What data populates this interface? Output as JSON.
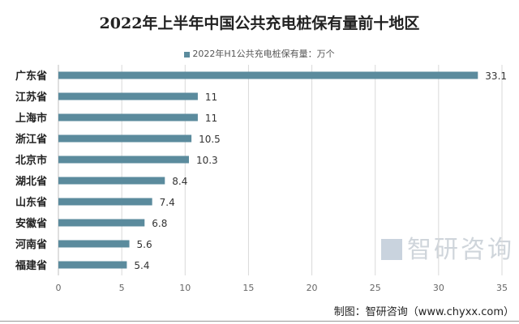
{
  "chart_data": {
    "type": "bar",
    "orientation": "horizontal",
    "title": "2022年上半年中国公共充电桩保有量前十地区",
    "categories": [
      "广东省",
      "江苏省",
      "上海市",
      "浙江省",
      "北京市",
      "湖北省",
      "山东省",
      "安徽省",
      "河南省",
      "福建省"
    ],
    "series": [
      {
        "name": "2022年H1公共充电桩保有量：万个",
        "values": [
          33.1,
          11,
          11,
          10.5,
          10.3,
          8.4,
          7.4,
          6.8,
          5.6,
          5.4
        ]
      }
    ],
    "data_labels": [
      "33.1",
      "11",
      "11",
      "10.5",
      "10.3",
      "8.4",
      "7.4",
      "6.8",
      "5.6",
      "5.4"
    ],
    "xlim": [
      0,
      35
    ],
    "xticks": [
      "0",
      "5",
      "10",
      "15",
      "20",
      "25",
      "30",
      "35"
    ],
    "grid": "vertical",
    "legend": "top-center",
    "color": "#5b8b9d"
  },
  "watermark": "智研咨询",
  "source": "制图：智研咨询（www.chyxx.com）"
}
